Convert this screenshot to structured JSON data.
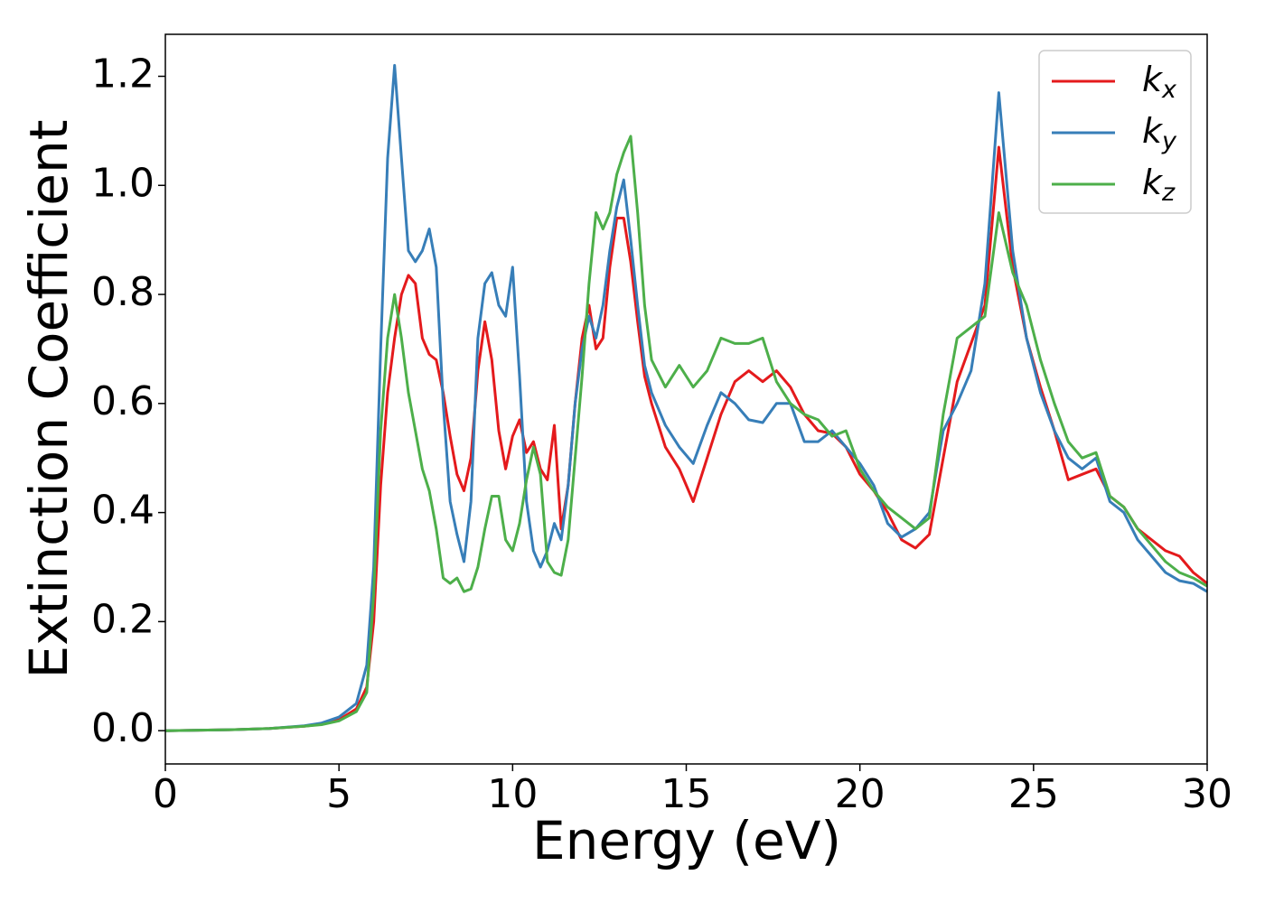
{
  "chart_data": {
    "type": "line",
    "x_label": "Energy (eV)",
    "y_label": "Extinction Coefficient",
    "x": [
      0,
      1,
      2,
      3,
      4,
      4.5,
      5,
      5.5,
      5.8,
      6,
      6.2,
      6.4,
      6.6,
      6.8,
      7,
      7.2,
      7.4,
      7.6,
      7.8,
      8,
      8.2,
      8.4,
      8.6,
      8.8,
      9,
      9.2,
      9.4,
      9.6,
      9.8,
      10,
      10.2,
      10.4,
      10.6,
      10.8,
      11,
      11.2,
      11.4,
      11.6,
      11.8,
      12,
      12.2,
      12.4,
      12.6,
      12.8,
      13,
      13.2,
      13.4,
      13.6,
      13.8,
      14,
      14.4,
      14.8,
      15.2,
      15.6,
      16,
      16.4,
      16.8,
      17.2,
      17.6,
      18,
      18.4,
      18.8,
      19.2,
      19.6,
      20,
      20.4,
      20.8,
      21.2,
      21.6,
      22,
      22.4,
      22.8,
      23.2,
      23.6,
      24,
      24.4,
      24.8,
      25.2,
      25.6,
      26,
      26.4,
      26.8,
      27.2,
      27.6,
      28,
      28.4,
      28.8,
      29.2,
      29.6,
      30
    ],
    "series": [
      {
        "name": "kx",
        "color": "#e41a1c",
        "values": [
          0,
          0.001,
          0.002,
          0.004,
          0.008,
          0.012,
          0.02,
          0.04,
          0.08,
          0.2,
          0.45,
          0.62,
          0.72,
          0.8,
          0.835,
          0.82,
          0.72,
          0.69,
          0.68,
          0.62,
          0.54,
          0.47,
          0.44,
          0.5,
          0.66,
          0.75,
          0.68,
          0.55,
          0.48,
          0.54,
          0.57,
          0.51,
          0.53,
          0.48,
          0.46,
          0.56,
          0.37,
          0.45,
          0.6,
          0.72,
          0.78,
          0.7,
          0.72,
          0.85,
          0.94,
          0.94,
          0.86,
          0.75,
          0.65,
          0.6,
          0.52,
          0.48,
          0.42,
          0.5,
          0.58,
          0.64,
          0.66,
          0.64,
          0.66,
          0.63,
          0.58,
          0.55,
          0.545,
          0.52,
          0.47,
          0.44,
          0.4,
          0.35,
          0.335,
          0.36,
          0.5,
          0.64,
          0.71,
          0.78,
          1.07,
          0.85,
          0.72,
          0.63,
          0.55,
          0.46,
          0.47,
          0.48,
          0.43,
          0.41,
          0.37,
          0.35,
          0.33,
          0.32,
          0.29,
          0.27
        ]
      },
      {
        "name": "ky",
        "color": "#377eb8",
        "values": [
          0,
          0.001,
          0.002,
          0.004,
          0.009,
          0.014,
          0.025,
          0.05,
          0.12,
          0.3,
          0.7,
          1.05,
          1.22,
          1.05,
          0.88,
          0.86,
          0.88,
          0.92,
          0.85,
          0.6,
          0.42,
          0.36,
          0.31,
          0.42,
          0.72,
          0.82,
          0.84,
          0.78,
          0.76,
          0.85,
          0.65,
          0.42,
          0.33,
          0.3,
          0.33,
          0.38,
          0.35,
          0.45,
          0.6,
          0.7,
          0.76,
          0.72,
          0.78,
          0.88,
          0.96,
          1.01,
          0.9,
          0.78,
          0.67,
          0.62,
          0.56,
          0.52,
          0.49,
          0.56,
          0.62,
          0.6,
          0.57,
          0.565,
          0.6,
          0.6,
          0.53,
          0.53,
          0.55,
          0.52,
          0.49,
          0.45,
          0.38,
          0.355,
          0.37,
          0.4,
          0.55,
          0.6,
          0.66,
          0.82,
          1.17,
          0.88,
          0.72,
          0.62,
          0.55,
          0.5,
          0.48,
          0.5,
          0.42,
          0.4,
          0.35,
          0.32,
          0.29,
          0.275,
          0.27,
          0.255
        ]
      },
      {
        "name": "kz",
        "color": "#4daf4a",
        "values": [
          0,
          0.001,
          0.002,
          0.004,
          0.008,
          0.011,
          0.018,
          0.035,
          0.07,
          0.25,
          0.55,
          0.72,
          0.8,
          0.72,
          0.62,
          0.55,
          0.48,
          0.44,
          0.37,
          0.28,
          0.27,
          0.28,
          0.255,
          0.26,
          0.3,
          0.37,
          0.43,
          0.43,
          0.35,
          0.33,
          0.38,
          0.46,
          0.52,
          0.47,
          0.31,
          0.29,
          0.285,
          0.35,
          0.5,
          0.65,
          0.82,
          0.95,
          0.92,
          0.95,
          1.02,
          1.06,
          1.09,
          0.95,
          0.78,
          0.68,
          0.63,
          0.67,
          0.63,
          0.66,
          0.72,
          0.71,
          0.71,
          0.72,
          0.64,
          0.6,
          0.58,
          0.57,
          0.54,
          0.55,
          0.48,
          0.44,
          0.41,
          0.39,
          0.37,
          0.39,
          0.58,
          0.72,
          0.74,
          0.76,
          0.95,
          0.84,
          0.78,
          0.68,
          0.6,
          0.53,
          0.5,
          0.51,
          0.43,
          0.41,
          0.37,
          0.34,
          0.31,
          0.29,
          0.28,
          0.265
        ]
      }
    ],
    "xlim": [
      0,
      30
    ],
    "xticks": [
      0,
      5,
      10,
      15,
      20,
      25,
      30
    ],
    "ylim": [
      -0.061,
      1.277
    ],
    "yticks": [
      {
        "value": 0,
        "label": "0.0"
      },
      {
        "value": 0.2,
        "label": "0.2"
      },
      {
        "value": 0.4,
        "label": "0.4"
      },
      {
        "value": 0.6,
        "label": "0.6"
      },
      {
        "value": 0.8,
        "label": "0.8"
      },
      {
        "value": 1.0,
        "label": "1.0"
      },
      {
        "value": 1.2,
        "label": "1.2"
      }
    ],
    "legend": "upper right",
    "grid": false
  }
}
